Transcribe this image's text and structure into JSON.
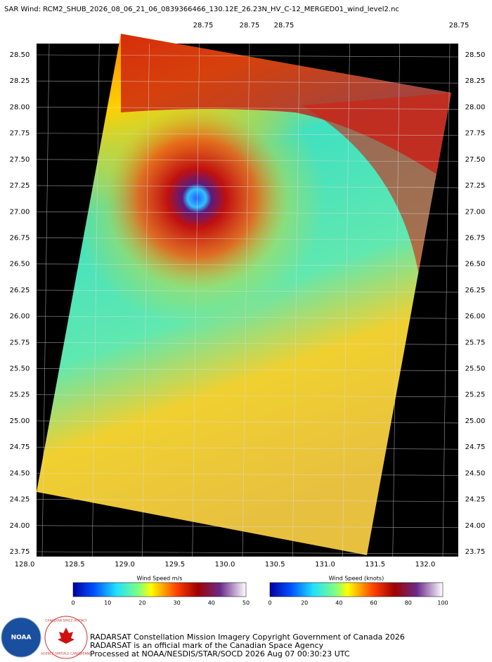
{
  "title": "SAR Wind: RCM2_SHUB_2026_08_06_21_06_0839366466_130.12E_26.23N_HV_C-12_MERGED01_wind_level2.nc",
  "top_labels": [
    "28.75",
    "28.75",
    "28.75",
    "28.75"
  ],
  "lat_labels": [
    "28.50",
    "28.25",
    "28.00",
    "27.75",
    "27.50",
    "27.25",
    "27.00",
    "26.75",
    "26.50",
    "26.25",
    "26.00",
    "25.75",
    "25.50",
    "25.25",
    "25.00",
    "24.75",
    "24.50",
    "24.25",
    "24.00",
    "23.75"
  ],
  "lon_labels": [
    "128.0",
    "128.5",
    "129.0",
    "129.5",
    "130.0",
    "130.5",
    "131.0",
    "131.5",
    "132.0"
  ],
  "colorbars": [
    {
      "title": "Wind Speed m/s",
      "ticks": [
        "0",
        "10",
        "20",
        "30",
        "40",
        "50"
      ]
    },
    {
      "title": "Wind Speed (knots)",
      "ticks": [
        "0",
        "20",
        "40",
        "60",
        "80",
        "100"
      ]
    }
  ],
  "logos": [
    "NOAA",
    "CANADIAN SPACE AGENCY",
    "AGENCE SPATIALE CANADIENNE"
  ],
  "credits": [
    "RADARSAT Constellation Mission Imagery Copyright Government of Canada 2026",
    "RADARSAT is an official mark of the Canadian Space Agency",
    "Processed at NOAA/NESDIS/STAR/SOCD 2026 Aug 07 00:30:23 UTC"
  ]
}
